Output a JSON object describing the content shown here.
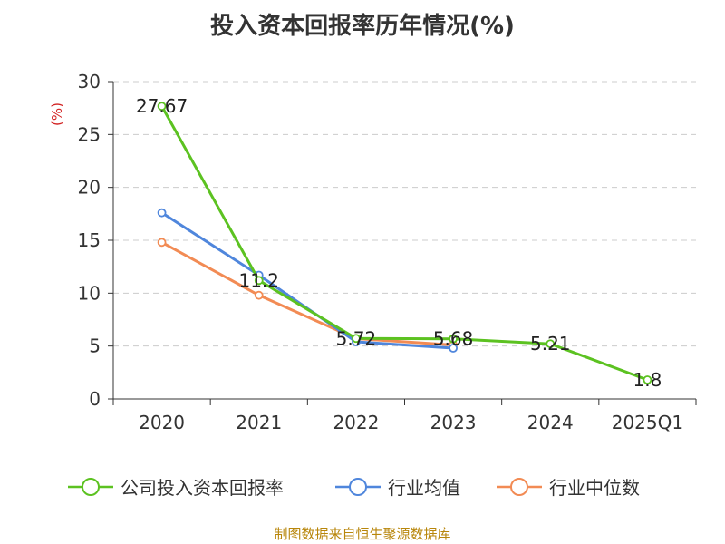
{
  "chart_data": {
    "type": "line",
    "title": "投入资本回报率历年情况(%)",
    "ylabel": "(%)",
    "xlabel": "",
    "categories": [
      "2020",
      "2021",
      "2022",
      "2023",
      "2024",
      "2025Q1"
    ],
    "ylim": [
      0,
      30
    ],
    "yticks": [
      0,
      5,
      10,
      15,
      20,
      25,
      30
    ],
    "grid": true,
    "legend_position": "bottom",
    "series": [
      {
        "name": "公司投入资本回报率",
        "color": "#5cc221",
        "values": [
          27.67,
          11.2,
          5.72,
          5.68,
          5.21,
          1.8
        ],
        "labels": [
          "27.67",
          "11.2",
          "5.72",
          "5.68",
          "5.21",
          "1.8"
        ]
      },
      {
        "name": "行业均值",
        "color": "#4f86dc",
        "values": [
          17.6,
          11.7,
          5.4,
          4.8,
          null,
          null
        ]
      },
      {
        "name": "行业中位数",
        "color": "#f28b54",
        "values": [
          14.8,
          9.8,
          5.7,
          5.1,
          null,
          null
        ]
      }
    ]
  },
  "source_text": "制图数据来自恒生聚源数据库"
}
